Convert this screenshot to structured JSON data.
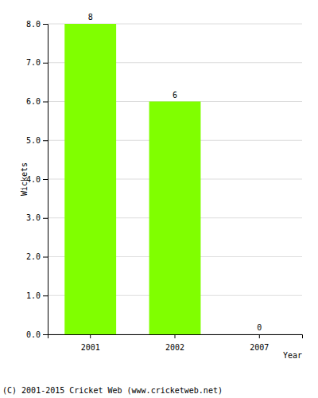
{
  "chart_data": {
    "type": "bar",
    "x_label": "Year",
    "y_label": "Wickets",
    "categories": [
      "2001",
      "2002",
      "2007"
    ],
    "values": [
      8,
      6,
      0
    ],
    "color": "#80ff00",
    "ylim": [
      0,
      8
    ],
    "yticks": [
      {
        "value": 0,
        "label": "0.0"
      },
      {
        "value": 1,
        "label": "1.0"
      },
      {
        "value": 2,
        "label": "2.0"
      },
      {
        "value": 3,
        "label": "3.0"
      },
      {
        "value": 4,
        "label": "4.0"
      },
      {
        "value": 5,
        "label": "5.0"
      },
      {
        "value": 6,
        "label": "6.0"
      },
      {
        "value": 7,
        "label": "7.0"
      },
      {
        "value": 8,
        "label": "8.0"
      }
    ],
    "grid": true,
    "data_labels": true,
    "annotations": [
      "(C) 2001-2015 Cricket Web (www.cricketweb.net)"
    ]
  }
}
